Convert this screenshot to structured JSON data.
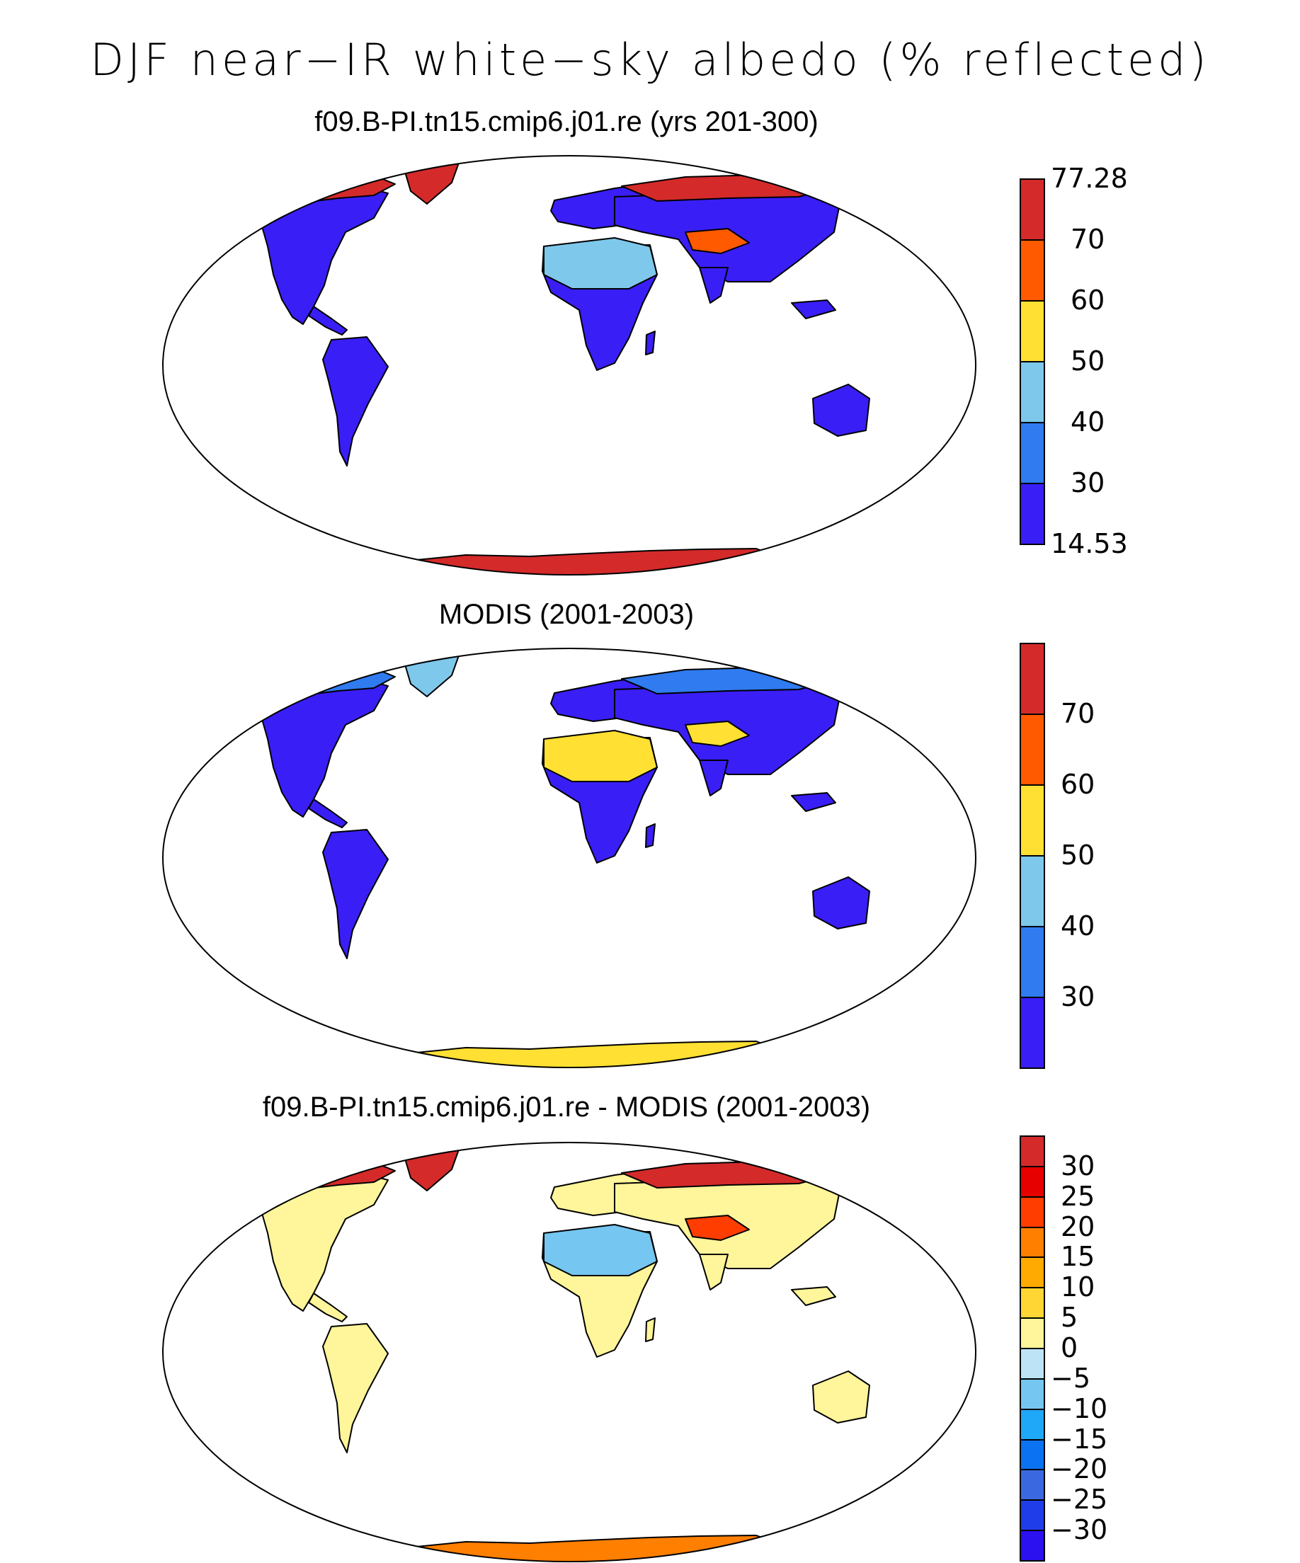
{
  "main_title": "DJF near−IR white−sky albedo (% reflected)",
  "panels": [
    {
      "title": "f09.B-PI.tn15.cmip6.j01.re (yrs 201-300)",
      "colorbar": {
        "colors": [
          "#d42a2a",
          "#ff5a00",
          "#ffe033",
          "#7ec8ec",
          "#2f7bef",
          "#3a1ef6"
        ],
        "labels": [
          "77.28",
          "70",
          "60",
          "50",
          "40",
          "30",
          "14.53"
        ]
      },
      "regions": {
        "greenland": "#d42a2a",
        "arctic_canada": "#d42a2a",
        "siberia_north": "#d42a2a",
        "antarctica": "#d42a2a",
        "tibet": "#ff5a00",
        "sahara": "#7ec8ec",
        "other_land": "#3a1ef6"
      }
    },
    {
      "title": "MODIS (2001-2003)",
      "colorbar": {
        "colors": [
          "#d42a2a",
          "#ff5a00",
          "#ffe033",
          "#7ec8ec",
          "#2f7bef",
          "#3a1ef6"
        ],
        "labels": [
          "70",
          "60",
          "50",
          "40",
          "30"
        ]
      },
      "regions": {
        "greenland": "#7ec8ec",
        "arctic_canada": "#2f7bef",
        "siberia_north": "#2f7bef",
        "antarctica": "#ffe033",
        "tibet": "#ffe033",
        "sahara": "#ffe033",
        "other_land": "#3a1ef6"
      }
    },
    {
      "title": "f09.B-PI.tn15.cmip6.j01.re - MODIS (2001-2003)",
      "colorbar": {
        "colors": [
          "#d42a2a",
          "#e60000",
          "#ff3d00",
          "#ff7f00",
          "#ffaa00",
          "#ffd633",
          "#fff59a",
          "#bde3f7",
          "#75c6f0",
          "#1fa8f7",
          "#0b72f2",
          "#3a68e0",
          "#1f3de8",
          "#2b10f0"
        ],
        "labels": [
          "30",
          "25",
          "20",
          "15",
          "10",
          "5",
          "0",
          "−5",
          "−10",
          "−15",
          "−20",
          "−25",
          "−30"
        ]
      },
      "regions": {
        "greenland": "#d42a2a",
        "arctic_canada": "#d42a2a",
        "siberia_north": "#d42a2a",
        "antarctica": "#ff7f00",
        "tibet": "#ff3d00",
        "sahara": "#75c6f0",
        "other_land": "#fff59a"
      }
    }
  ]
}
